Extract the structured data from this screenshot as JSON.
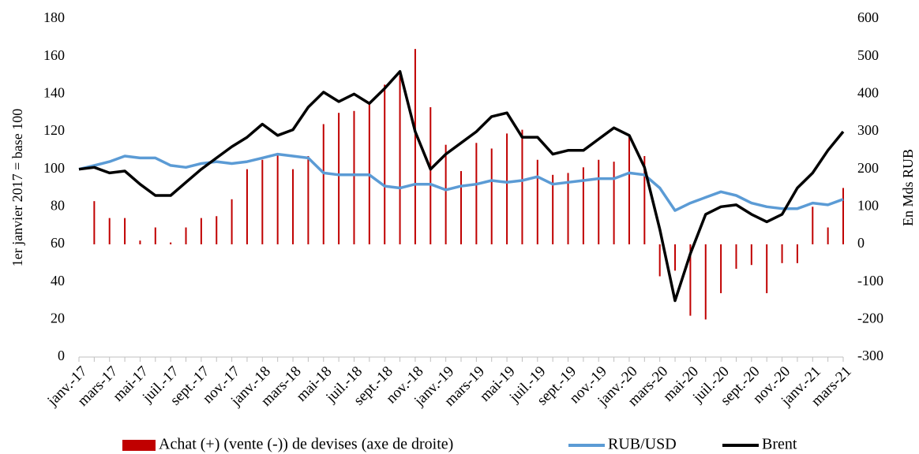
{
  "chart_data": {
    "type": "combo",
    "y_label": "1er janvier 2017 = base 100",
    "y2_label": "En Mds RUB",
    "categories": [
      "janv.-17",
      null,
      "mars-17",
      null,
      "mai-17",
      null,
      "juil.-17",
      null,
      "sept.-17",
      null,
      "nov.-17",
      null,
      "janv.-18",
      null,
      "mars-18",
      null,
      "mai-18",
      null,
      "juil.-18",
      null,
      "sept.-18",
      null,
      "nov.-18",
      null,
      "janv.-19",
      null,
      "mars-19",
      null,
      "mai-19",
      null,
      "juil.-19",
      null,
      "sept.-19",
      null,
      "nov.-19",
      null,
      "janv.-20",
      null,
      "mars-20",
      null,
      "mai-20",
      null,
      "juil.-20",
      null,
      "sept.-20",
      null,
      "nov.-20",
      null,
      "janv.-21",
      null,
      "mars-21"
    ],
    "ylim": [
      0,
      180
    ],
    "yticks": [
      0,
      20,
      40,
      60,
      80,
      100,
      120,
      140,
      160,
      180
    ],
    "y2lim": [
      -300,
      600
    ],
    "y2ticks": [
      -300,
      -200,
      -100,
      0,
      100,
      200,
      300,
      400,
      500,
      600
    ],
    "series": [
      {
        "name": "Achat (+) (vente (-)) de devises (axe de droite)",
        "type": "bar",
        "axis": "y2",
        "color": "#c00000",
        "values": [
          null,
          115,
          70,
          70,
          10,
          45,
          5,
          45,
          70,
          75,
          120,
          200,
          225,
          240,
          200,
          235,
          320,
          350,
          355,
          380,
          425,
          450,
          520,
          365,
          265,
          195,
          270,
          255,
          295,
          305,
          225,
          185,
          190,
          205,
          225,
          220,
          290,
          235,
          -85,
          -70,
          -190,
          -200,
          -130,
          -65,
          -55,
          -130,
          -50,
          -50,
          100,
          45,
          150
        ]
      },
      {
        "name": "RUB/USD",
        "type": "line",
        "color": "#5b9bd5",
        "values": [
          100,
          102,
          104,
          107,
          106,
          106,
          102,
          101,
          103,
          104,
          103,
          104,
          106,
          108,
          107,
          106,
          98,
          97,
          97,
          97,
          91,
          90,
          92,
          92,
          89,
          91,
          92,
          94,
          93,
          94,
          96,
          92,
          93,
          94,
          95,
          95,
          98,
          97,
          90,
          78,
          82,
          85,
          88,
          86,
          82,
          80,
          79,
          79,
          82,
          81,
          84
        ]
      },
      {
        "name": "Brent",
        "type": "line",
        "color": "#000000",
        "values": [
          100,
          101,
          98,
          99,
          92,
          86,
          86,
          93,
          100,
          106,
          112,
          117,
          124,
          118,
          121,
          133,
          141,
          136,
          140,
          135,
          143,
          152,
          120,
          100,
          108,
          114,
          120,
          128,
          130,
          117,
          117,
          108,
          110,
          110,
          116,
          122,
          118,
          101,
          68,
          30,
          55,
          76,
          80,
          81,
          76,
          72,
          76,
          90,
          98,
          110,
          120
        ]
      }
    ]
  }
}
